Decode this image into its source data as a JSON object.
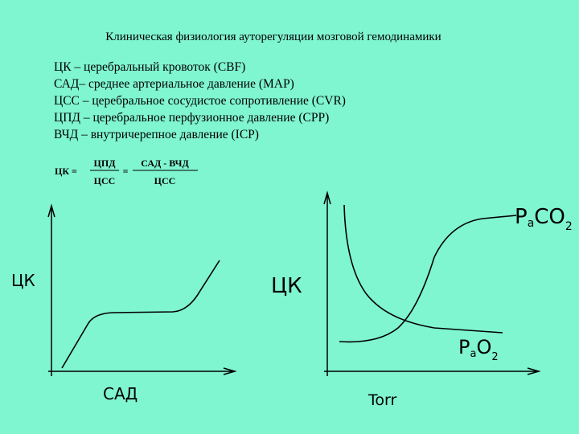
{
  "title": "Клиническая физиология ауторегуляции мозговой гемодинамики",
  "definitions": [
    "ЦК – церебральный кровоток (CBF)",
    "САД– среднее артериальное давление (MAP)",
    "ЦСС – церебральное сосудистое сопротивление (CVR)",
    "ЦПД – церебральное перфузионное давление (CPP)",
    "ВЧД – внутричерепное давление (ICP)"
  ],
  "formula": {
    "lhs": "ЦК =",
    "fraction1": {
      "numerator": "ЦПД",
      "denominator": "ЦСС"
    },
    "equals": "=",
    "fraction2": {
      "numerator": "САД - ВЧД",
      "denominator": "ЦСС"
    }
  },
  "left_graph": {
    "y_label": "ЦК",
    "x_label": "САД"
  },
  "right_graph": {
    "y_label": "ЦК",
    "x_label": "Torr",
    "curve1_label": {
      "main": "P",
      "sub": "a",
      "main2": "CO",
      "sub2": "2"
    },
    "curve2_label": {
      "main": "P",
      "sub": "a",
      "main2": "O",
      "sub2": "2"
    }
  }
}
